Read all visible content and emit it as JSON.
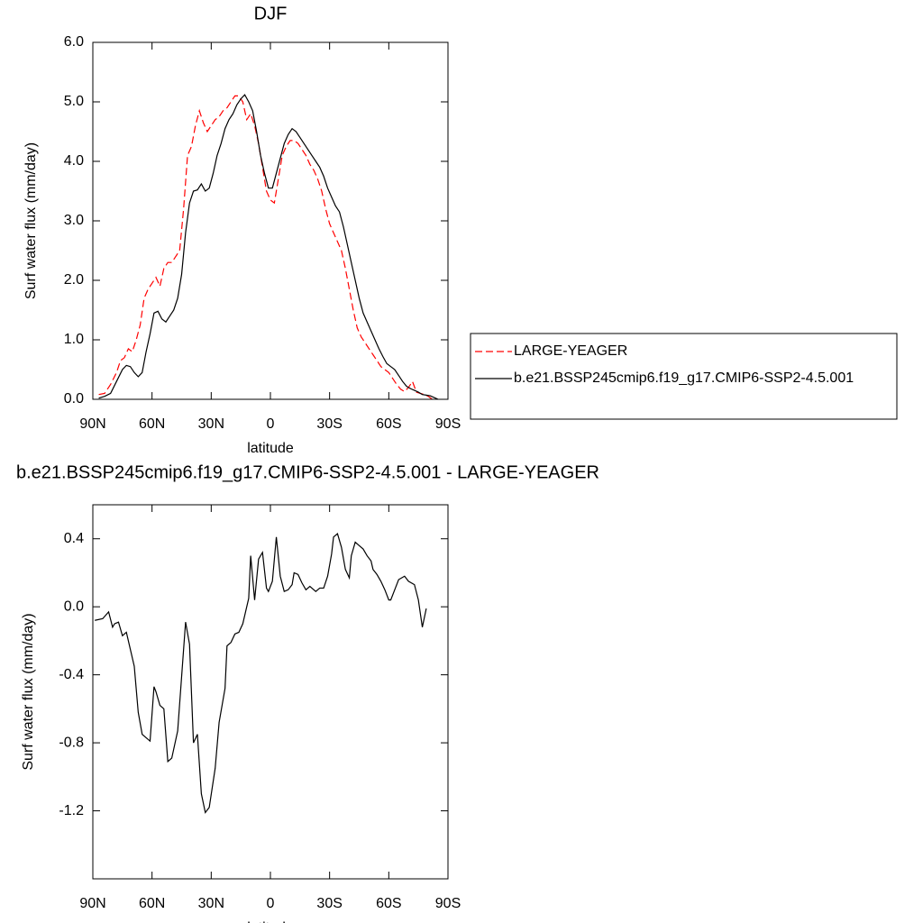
{
  "chart_data": [
    {
      "type": "line",
      "title": "DJF",
      "xlabel": "latitude",
      "ylabel": "Surf water flux (mm/day)",
      "xlim": [
        90,
        -90
      ],
      "xticks": [
        {
          "value": 90,
          "label": "90N"
        },
        {
          "value": 60,
          "label": "60N"
        },
        {
          "value": 30,
          "label": "30N"
        },
        0,
        {
          "value": -30,
          "label": "30S"
        },
        {
          "value": -60,
          "label": "60S"
        },
        {
          "value": -90,
          "label": "90S"
        }
      ],
      "ylim": [
        0,
        6
      ],
      "yticks": [
        {
          "value": 0,
          "label": "0.0"
        },
        {
          "value": 1,
          "label": "1.0"
        },
        {
          "value": 2,
          "label": "2.0"
        },
        {
          "value": 3,
          "label": "3.0"
        },
        {
          "value": 4,
          "label": "4.0"
        },
        {
          "value": 5,
          "label": "5.0"
        },
        {
          "value": 6,
          "label": "6.0"
        }
      ],
      "legend": "right",
      "series": [
        {
          "name": "LARGE-YEAGER",
          "color": "#ff0000",
          "dash": "dashed",
          "x": [
            87,
            84,
            81,
            78,
            76,
            74,
            72,
            70,
            68,
            66,
            64,
            62,
            60,
            58,
            56,
            54,
            52,
            50,
            48,
            46,
            44,
            42,
            40,
            38,
            36,
            34,
            32,
            30,
            28,
            26,
            24,
            22,
            20,
            18,
            16,
            14,
            12,
            10,
            8,
            6,
            4,
            2,
            0,
            -2,
            -4,
            -6,
            -8,
            -10,
            -12,
            -14,
            -16,
            -18,
            -20,
            -22,
            -24,
            -26,
            -28,
            -30,
            -32,
            -34,
            -36,
            -38,
            -40,
            -42,
            -44,
            -46,
            -48,
            -50,
            -52,
            -54,
            -56,
            -58,
            -60,
            -62,
            -64,
            -66,
            -68,
            -70,
            -72,
            -74,
            -76,
            -78,
            -80,
            -82
          ],
          "values": [
            0.08,
            0.1,
            0.25,
            0.45,
            0.65,
            0.7,
            0.85,
            0.8,
            1.0,
            1.25,
            1.7,
            1.85,
            1.95,
            2.05,
            1.9,
            2.2,
            2.3,
            2.3,
            2.4,
            2.5,
            3.2,
            4.1,
            4.25,
            4.6,
            4.85,
            4.65,
            4.5,
            4.6,
            4.7,
            4.75,
            4.85,
            4.9,
            5.0,
            5.1,
            5.1,
            5.0,
            4.7,
            4.8,
            4.6,
            4.3,
            3.9,
            3.5,
            3.35,
            3.3,
            3.7,
            4.1,
            4.25,
            4.35,
            4.35,
            4.3,
            4.2,
            4.1,
            3.95,
            3.85,
            3.7,
            3.5,
            3.2,
            2.95,
            2.8,
            2.65,
            2.5,
            2.2,
            1.85,
            1.5,
            1.2,
            1.05,
            0.95,
            0.85,
            0.75,
            0.65,
            0.55,
            0.5,
            0.45,
            0.35,
            0.25,
            0.17,
            0.13,
            0.2,
            0.3,
            0.12,
            0.1,
            0.08,
            0.05,
            0.0
          ]
        },
        {
          "name": "b.e21.BSSP245cmip6.f19_g17.CMIP6-SSP2-4.5.001",
          "color": "#000000",
          "dash": "solid",
          "x": [
            87,
            84,
            81,
            78,
            75,
            73,
            71,
            69,
            67,
            65,
            63,
            61,
            59,
            57,
            55,
            53,
            51,
            49,
            47,
            45,
            43,
            41,
            39,
            37,
            35,
            33,
            31,
            29,
            27,
            25,
            23,
            21,
            19,
            17,
            15,
            13,
            11,
            9,
            7,
            5,
            3,
            1,
            -1,
            -3,
            -5,
            -7,
            -9,
            -11,
            -13,
            -15,
            -17,
            -19,
            -21,
            -23,
            -25,
            -27,
            -29,
            -31,
            -33,
            -35,
            -37,
            -39,
            -41,
            -43,
            -45,
            -47,
            -49,
            -51,
            -53,
            -55,
            -57,
            -59,
            -61,
            -63,
            -65,
            -67,
            -69,
            -71,
            -73,
            -75,
            -77,
            -79,
            -81,
            -83,
            -85
          ],
          "values": [
            0.02,
            0.05,
            0.1,
            0.3,
            0.5,
            0.57,
            0.55,
            0.45,
            0.38,
            0.45,
            0.8,
            1.1,
            1.45,
            1.48,
            1.35,
            1.3,
            1.4,
            1.5,
            1.7,
            2.1,
            2.8,
            3.3,
            3.5,
            3.52,
            3.62,
            3.5,
            3.55,
            3.8,
            4.1,
            4.3,
            4.55,
            4.7,
            4.8,
            4.95,
            5.05,
            5.12,
            5.0,
            4.85,
            4.5,
            4.1,
            3.8,
            3.55,
            3.55,
            3.8,
            4.05,
            4.3,
            4.45,
            4.55,
            4.5,
            4.4,
            4.3,
            4.2,
            4.1,
            4.0,
            3.9,
            3.75,
            3.55,
            3.4,
            3.25,
            3.15,
            2.9,
            2.6,
            2.3,
            2.0,
            1.7,
            1.45,
            1.3,
            1.15,
            1.0,
            0.85,
            0.72,
            0.6,
            0.55,
            0.5,
            0.4,
            0.3,
            0.22,
            0.18,
            0.15,
            0.12,
            0.08,
            0.07,
            0.06,
            0.03,
            0.0
          ]
        }
      ]
    },
    {
      "type": "line",
      "title": "b.e21.BSSP245cmip6.f19_g17.CMIP6-SSP2-4.5.001 - LARGE-YEAGER",
      "xlabel": "latitude",
      "ylabel": "Surf water flux (mm/day)",
      "xlim": [
        90,
        -90
      ],
      "xticks": [
        {
          "value": 90,
          "label": "90N"
        },
        {
          "value": 60,
          "label": "60N"
        },
        {
          "value": 30,
          "label": "30N"
        },
        0,
        {
          "value": -30,
          "label": "30S"
        },
        {
          "value": -60,
          "label": "60S"
        },
        {
          "value": -90,
          "label": "90S"
        }
      ],
      "ylim": [
        -1.6,
        0.6
      ],
      "yticks": [
        -1.2,
        -0.8,
        -0.4,
        {
          "value": 0,
          "label": "0.0"
        },
        0.4
      ],
      "series": [
        {
          "color": "#000000",
          "dash": "solid",
          "x": [
            89,
            85,
            82,
            80,
            79,
            77,
            75,
            73,
            69,
            67,
            65,
            61,
            59,
            58,
            56,
            54,
            52,
            50,
            47,
            43,
            41,
            39,
            37,
            35,
            33,
            31,
            28,
            26,
            23,
            22,
            20,
            18,
            16,
            14,
            11,
            10,
            8,
            6,
            4,
            2,
            1,
            -1,
            -3,
            -5,
            -7,
            -9,
            -11,
            -12,
            -14,
            -16,
            -18,
            -20,
            -21,
            -23,
            -25,
            -27,
            -29,
            -31,
            -32,
            -34,
            -36,
            -38,
            -40,
            -41,
            -43,
            -45,
            -47,
            -49,
            -51,
            -52,
            -54,
            -56,
            -58,
            -60,
            -61,
            -63,
            -65,
            -68,
            -70,
            -73,
            -75,
            -77,
            -79
          ],
          "values": [
            -0.08,
            -0.07,
            -0.03,
            -0.12,
            -0.1,
            -0.09,
            -0.17,
            -0.15,
            -0.35,
            -0.62,
            -0.75,
            -0.79,
            -0.47,
            -0.5,
            -0.58,
            -0.6,
            -0.91,
            -0.89,
            -0.73,
            -0.09,
            -0.22,
            -0.8,
            -0.75,
            -1.1,
            -1.21,
            -1.18,
            -0.95,
            -0.68,
            -0.48,
            -0.23,
            -0.21,
            -0.16,
            -0.15,
            -0.1,
            0.05,
            0.3,
            0.04,
            0.28,
            0.32,
            0.11,
            0.09,
            0.15,
            0.41,
            0.18,
            0.09,
            0.1,
            0.13,
            0.2,
            0.19,
            0.14,
            0.1,
            0.12,
            0.11,
            0.09,
            0.11,
            0.11,
            0.18,
            0.31,
            0.41,
            0.43,
            0.35,
            0.22,
            0.17,
            0.3,
            0.38,
            0.36,
            0.34,
            0.3,
            0.27,
            0.22,
            0.19,
            0.15,
            0.1,
            0.04,
            0.04,
            0.1,
            0.16,
            0.18,
            0.15,
            0.13,
            0.04,
            -0.12,
            -0.01
          ]
        }
      ]
    }
  ]
}
